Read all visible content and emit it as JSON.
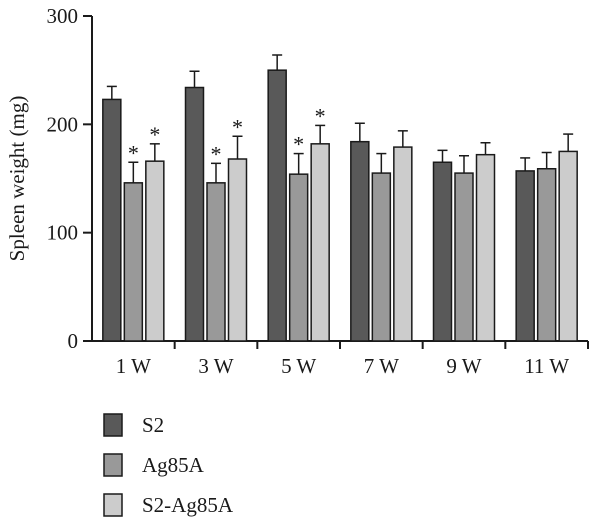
{
  "chart_data": {
    "type": "bar",
    "ylabel": "Spleen weight (mg)",
    "xlabel": "",
    "ylim": [
      0,
      300
    ],
    "yticks": [
      0,
      100,
      200,
      300
    ],
    "categories": [
      "1 W",
      "3 W",
      "5 W",
      "7 W",
      "9 W",
      "11 W"
    ],
    "series": [
      {
        "name": "S2",
        "color": "#595959",
        "values": [
          223,
          234,
          250,
          184,
          165,
          157
        ],
        "errors": [
          12,
          15,
          14,
          17,
          11,
          12
        ]
      },
      {
        "name": "Ag85A",
        "color": "#999999",
        "values": [
          146,
          146,
          154,
          155,
          155,
          159
        ],
        "errors": [
          19,
          18,
          19,
          18,
          16,
          15
        ]
      },
      {
        "name": "S2-Ag85A",
        "color": "#cccccc",
        "values": [
          166,
          168,
          182,
          179,
          172,
          175
        ],
        "errors": [
          16,
          21,
          17,
          15,
          11,
          16
        ]
      }
    ],
    "significance": [
      {
        "category": "1 W",
        "series": "Ag85A",
        "mark": "*"
      },
      {
        "category": "1 W",
        "series": "S2-Ag85A",
        "mark": "*"
      },
      {
        "category": "3 W",
        "series": "Ag85A",
        "mark": "*"
      },
      {
        "category": "3 W",
        "series": "S2-Ag85A",
        "mark": "*"
      },
      {
        "category": "5 W",
        "series": "Ag85A",
        "mark": "*"
      },
      {
        "category": "5 W",
        "series": "S2-Ag85A",
        "mark": "*"
      }
    ],
    "legend_position": "bottom-left",
    "grid": false
  }
}
